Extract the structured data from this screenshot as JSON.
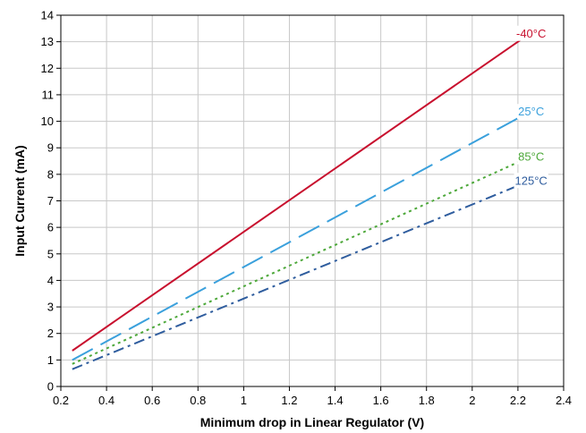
{
  "chart_data": {
    "type": "line",
    "title": "",
    "xlabel": "Minimum drop in Linear Regulator (V)",
    "ylabel": "Input Current (mA)",
    "xlim": [
      0.2,
      2.4
    ],
    "ylim": [
      0,
      14
    ],
    "xticks": [
      0.2,
      0.4,
      0.6,
      0.8,
      1,
      1.2,
      1.4,
      1.6,
      1.8,
      2,
      2.2,
      2.4
    ],
    "xtick_labels": [
      "0.2",
      "0.4",
      "0.6",
      "0.8",
      "1",
      "1.2",
      "1.4",
      "1.6",
      "1.8",
      "2",
      "2.2",
      "2.4"
    ],
    "yticks": [
      0,
      1,
      2,
      3,
      4,
      5,
      6,
      7,
      8,
      9,
      10,
      11,
      12,
      13,
      14
    ],
    "ytick_labels": [
      "0",
      "1",
      "2",
      "3",
      "4",
      "5",
      "6",
      "7",
      "8",
      "9",
      "10",
      "11",
      "12",
      "13",
      "14"
    ],
    "grid": true,
    "series": [
      {
        "name": "-40°C",
        "color": "#c8102e",
        "line_style": "solid",
        "x": [
          0.25,
          2.25
        ],
        "y": [
          1.35,
          13.3
        ]
      },
      {
        "name": "25°C",
        "color": "#3aa0dc",
        "line_style": "long-dash",
        "x": [
          0.25,
          2.25
        ],
        "y": [
          1.0,
          10.35
        ]
      },
      {
        "name": "85°C",
        "color": "#4da83a",
        "line_style": "dotted",
        "x": [
          0.25,
          2.25
        ],
        "y": [
          0.85,
          8.65
        ]
      },
      {
        "name": "125°C",
        "color": "#2f5d9e",
        "line_style": "dash-dot",
        "x": [
          0.25,
          2.25
        ],
        "y": [
          0.65,
          7.75
        ]
      }
    ]
  }
}
